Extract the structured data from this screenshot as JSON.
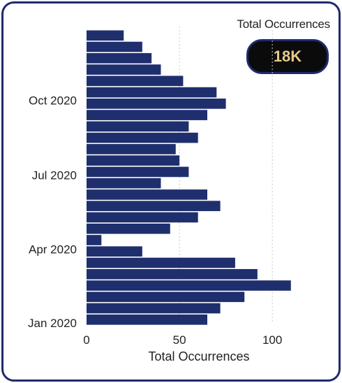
{
  "kpi": {
    "title": "Total Occurrences",
    "value": "18K"
  },
  "chart_data": {
    "type": "bar",
    "orientation": "horizontal",
    "xlabel": "Total Occurrences",
    "xlim": [
      0,
      130
    ],
    "x_ticks": [
      0,
      50,
      100
    ],
    "y_ticks": [
      "Oct 2020",
      "Jul 2020",
      "Apr 2020",
      "Jan 2020"
    ],
    "y_tick_dates": [
      "2020-10-01",
      "2020-07-01",
      "2020-04-01",
      "2020-01-01"
    ],
    "grid": true,
    "ylim": [
      "2020-01-01",
      "2020-12-31"
    ],
    "series": [
      {
        "x": [
          "2020-01-05",
          "2020-01-19",
          "2020-02-02",
          "2020-02-16",
          "2020-03-01",
          "2020-03-15",
          "2020-03-29",
          "2020-04-12",
          "2020-04-26",
          "2020-05-10",
          "2020-05-24",
          "2020-06-07",
          "2020-06-21",
          "2020-07-05",
          "2020-07-19",
          "2020-08-02",
          "2020-08-16",
          "2020-08-30",
          "2020-09-13",
          "2020-09-27",
          "2020-10-11",
          "2020-10-25",
          "2020-11-08",
          "2020-11-22",
          "2020-12-06",
          "2020-12-20"
        ],
        "values": [
          65,
          72,
          85,
          110,
          92,
          80,
          30,
          8,
          45,
          60,
          72,
          65,
          40,
          55,
          50,
          48,
          60,
          55,
          65,
          75,
          70,
          52,
          40,
          35,
          30,
          20
        ]
      }
    ]
  }
}
